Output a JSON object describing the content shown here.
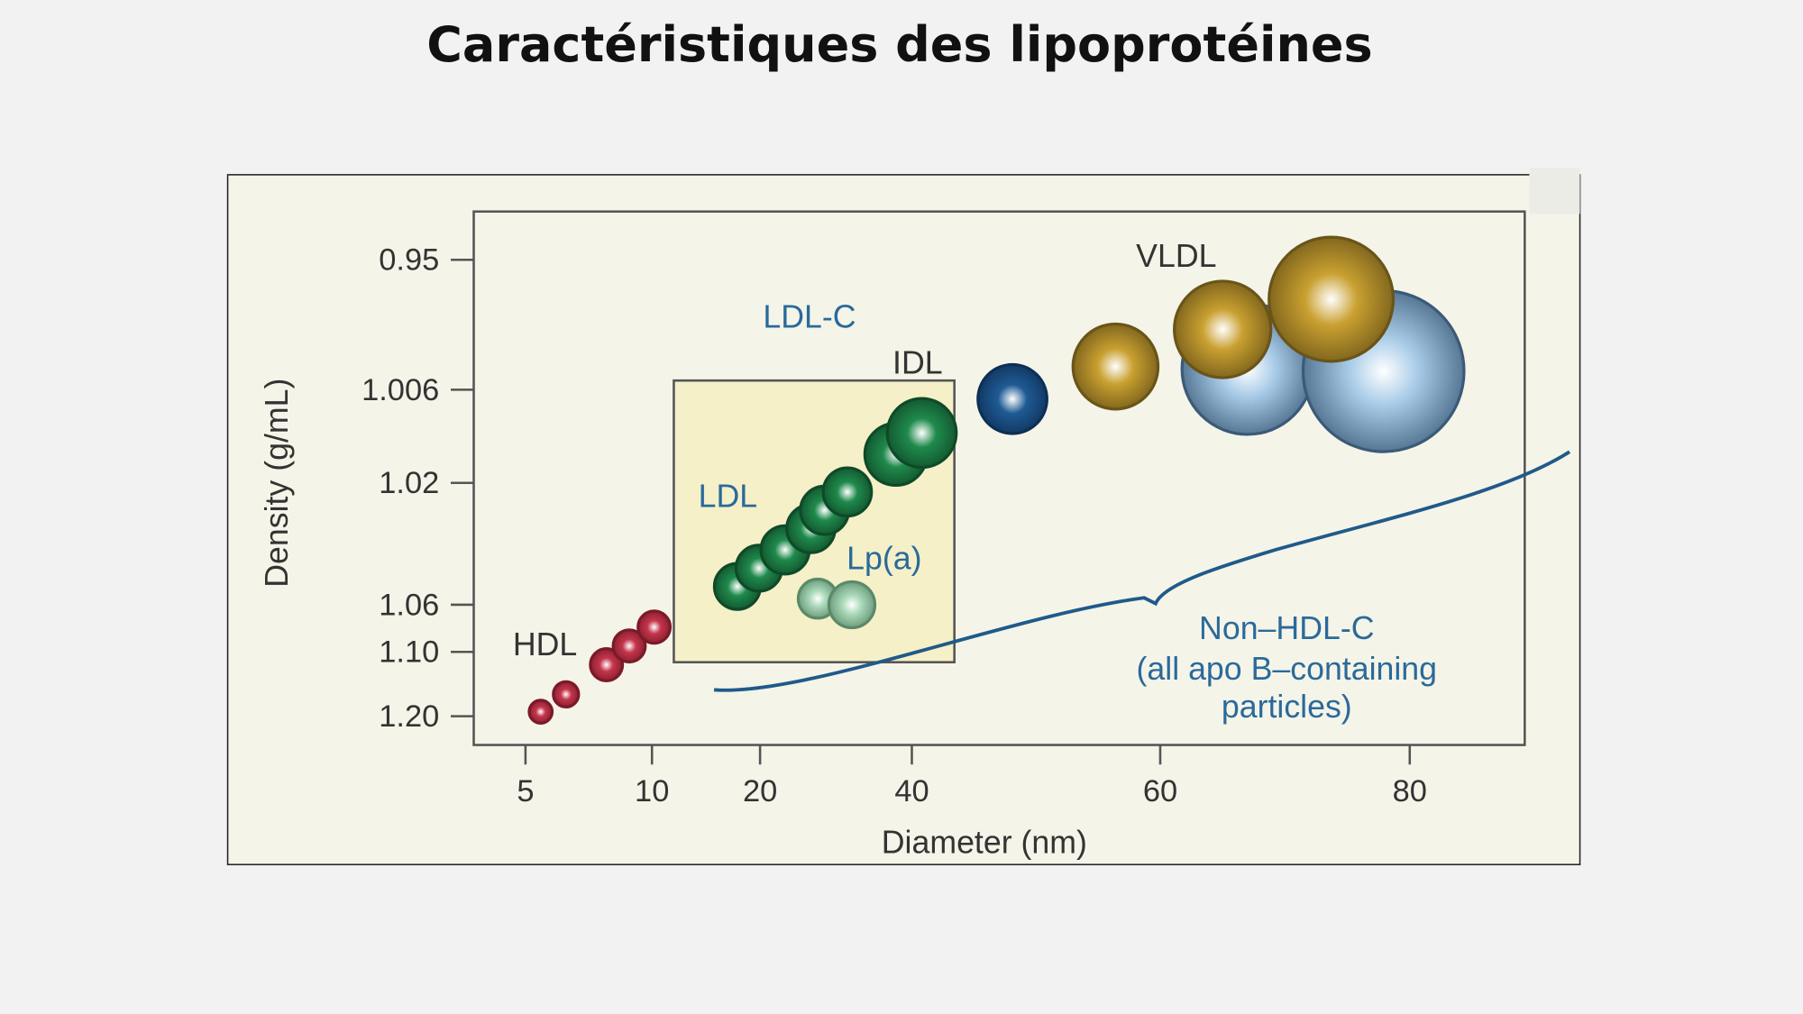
{
  "title": "Caractéristiques des lipoprotéines",
  "chart_data": {
    "type": "scatter",
    "title": "",
    "xlabel": "Diameter (nm)",
    "ylabel": "Density (g/mL)",
    "x_ticks": [
      5,
      10,
      20,
      40,
      60,
      80
    ],
    "y_ticks": [
      "0.95",
      "1.006",
      "1.02",
      "1.06",
      "1.10",
      "1.20"
    ],
    "x_scale": "nonlinear (ticks unevenly spaced)",
    "y_scale": "nonlinear, inverted (low density at top)",
    "grid": false,
    "series": [
      {
        "name": "HDL",
        "color": "#c4354b",
        "points": [
          [
            5.6,
            1.193
          ],
          [
            6.6,
            1.166
          ],
          [
            8.2,
            1.12
          ],
          [
            9.1,
            1.095
          ],
          [
            10.2,
            1.079
          ]
        ]
      },
      {
        "name": "LDL",
        "color": "#1f8a4c",
        "points": [
          [
            17.9,
            1.054
          ],
          [
            19.9,
            1.048
          ],
          [
            23.3,
            1.042
          ],
          [
            26.7,
            1.035
          ],
          [
            28.5,
            1.029
          ],
          [
            31.5,
            1.023
          ],
          [
            37.9,
            1.0157
          ],
          [
            40.8,
            1.0125
          ]
        ]
      },
      {
        "name": "Lp(a)",
        "color": "#a9d9b9",
        "points": [
          [
            27.6,
            1.058
          ],
          [
            32.1,
            1.06
          ]
        ]
      },
      {
        "name": "IDL",
        "color": "#1f5a94",
        "points": [
          [
            48.1,
            1.0074
          ]
        ]
      },
      {
        "name": "VLDL",
        "color": "#c9a030",
        "points": [
          [
            56.4,
            0.996
          ],
          [
            65.0,
            0.98
          ],
          [
            73.7,
            0.967
          ]
        ]
      },
      {
        "name": "",
        "color": "#a9cce8",
        "points": [
          [
            67.0,
            0.997
          ],
          [
            77.9,
            0.998
          ]
        ]
      }
    ],
    "annotations": {
      "hdl": "HDL",
      "ldl": "LDL",
      "lpa": "Lp(a)",
      "idl": "IDL",
      "vldl": "VLDL",
      "ldl_c": "LDL-C",
      "non_hdl": [
        "Non–HDL-C",
        "(all apo B–containing",
        "particles)"
      ]
    },
    "colors": {
      "background": "#f5f4e8",
      "ldl_box": "#f5f0c8",
      "annotation_blue": "#2a6a9a",
      "brace": "#1f5a8a"
    }
  }
}
